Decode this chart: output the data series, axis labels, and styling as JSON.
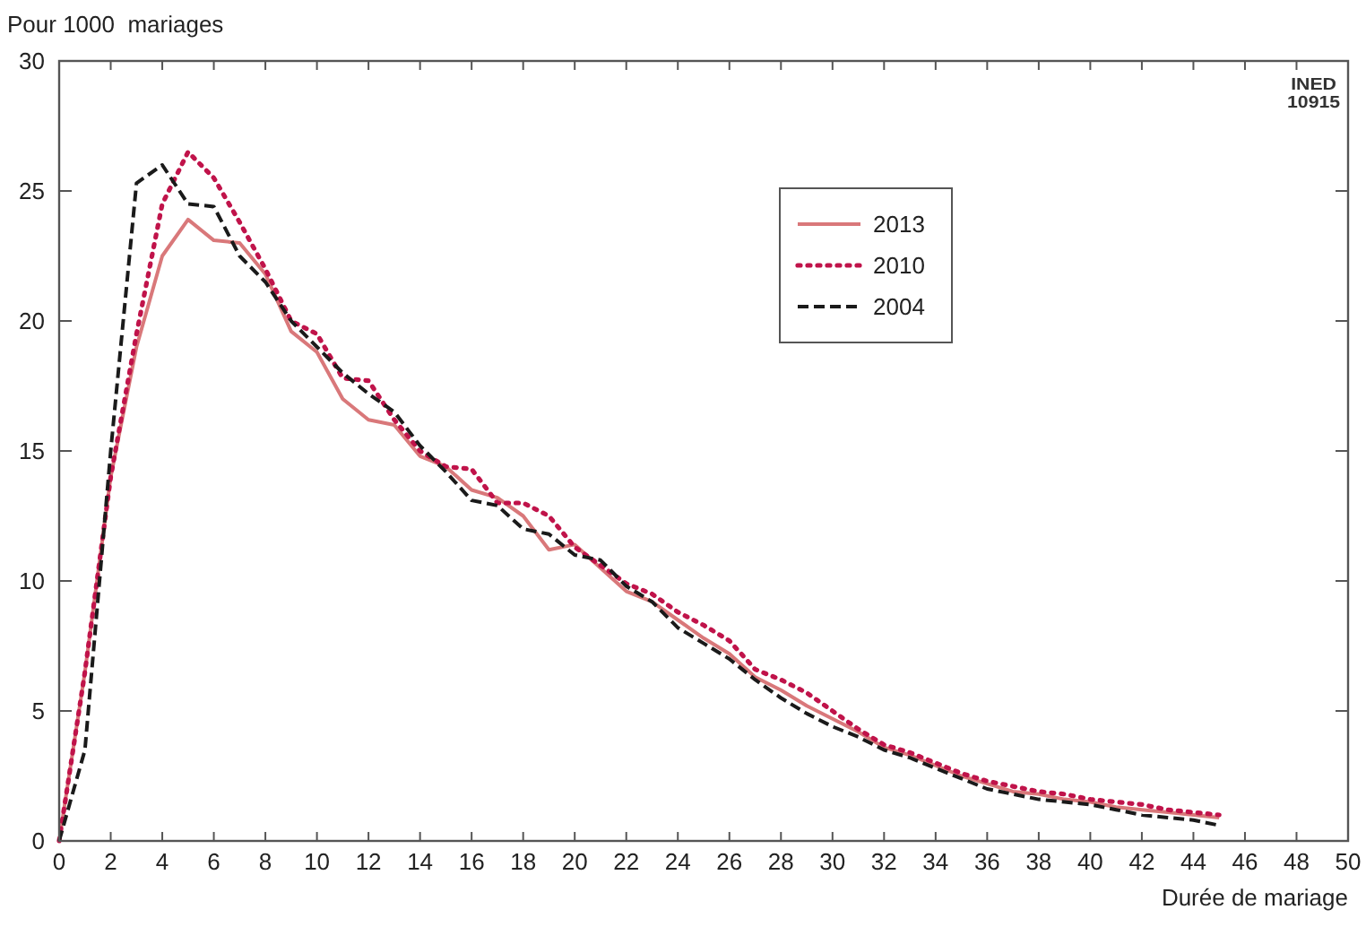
{
  "chart_data": {
    "type": "line",
    "xlabel": "Durée de mariage",
    "ylabel": "Pour 1000  mariages",
    "annotations": [
      "INED\n10915"
    ],
    "x": [
      0,
      1,
      2,
      3,
      4,
      5,
      6,
      7,
      8,
      9,
      10,
      11,
      12,
      13,
      14,
      15,
      16,
      17,
      18,
      19,
      20,
      21,
      22,
      23,
      24,
      25,
      26,
      27,
      28,
      29,
      30,
      31,
      32,
      33,
      34,
      35,
      36,
      37,
      38,
      39,
      40,
      41,
      42,
      43,
      44,
      45
    ],
    "series": [
      {
        "name": "2013",
        "color": "#d9787a",
        "line_style": "solid",
        "values": [
          0,
          6.5,
          14,
          19,
          22.5,
          23.9,
          23.1,
          23,
          21.8,
          19.6,
          18.8,
          17,
          16.2,
          16,
          14.8,
          14.4,
          13.5,
          13.2,
          12.5,
          11.2,
          11.4,
          10.5,
          9.6,
          9.2,
          8.5,
          7.8,
          7.2,
          6.3,
          5.8,
          5.2,
          4.7,
          4.2,
          3.6,
          3.3,
          2.9,
          2.5,
          2.2,
          1.9,
          1.8,
          1.6,
          1.5,
          1.3,
          1.2,
          1.1,
          1.0,
          0.9
        ]
      },
      {
        "name": "2010",
        "color": "#c0134a",
        "line_style": "dotted",
        "values": [
          0,
          6.5,
          14,
          19.5,
          24.5,
          26.5,
          25.5,
          23.8,
          22,
          20,
          19.5,
          17.8,
          17.7,
          16.2,
          15,
          14.4,
          14.3,
          13,
          13,
          12.5,
          11.3,
          10.6,
          9.9,
          9.5,
          8.8,
          8.3,
          7.7,
          6.6,
          6.2,
          5.7,
          5,
          4.3,
          3.7,
          3.4,
          3,
          2.6,
          2.3,
          2.1,
          1.9,
          1.8,
          1.6,
          1.5,
          1.4,
          1.2,
          1.1,
          1.0
        ]
      },
      {
        "name": "2004",
        "color": "#1a1a1a",
        "line_style": "dashed",
        "values": [
          0,
          3.5,
          15,
          25.3,
          26,
          24.5,
          24.4,
          22.5,
          21.5,
          20,
          19,
          18,
          17.2,
          16.5,
          15.2,
          14.2,
          13.1,
          12.9,
          12,
          11.8,
          11,
          10.8,
          9.8,
          9.2,
          8.2,
          7.6,
          7.0,
          6.2,
          5.5,
          4.9,
          4.4,
          4.0,
          3.5,
          3.2,
          2.8,
          2.4,
          2.0,
          1.8,
          1.6,
          1.5,
          1.4,
          1.2,
          1.0,
          0.9,
          0.8,
          0.6
        ]
      }
    ],
    "xlim": [
      0,
      50
    ],
    "xticks": [
      0,
      2,
      4,
      6,
      8,
      10,
      12,
      14,
      16,
      18,
      20,
      22,
      24,
      26,
      28,
      30,
      32,
      34,
      36,
      38,
      40,
      42,
      44,
      46,
      48,
      50
    ],
    "ylim": [
      0,
      30
    ],
    "yticks": [
      0,
      5,
      10,
      15,
      20,
      25,
      30
    ],
    "grid": false,
    "legend": "top right"
  }
}
